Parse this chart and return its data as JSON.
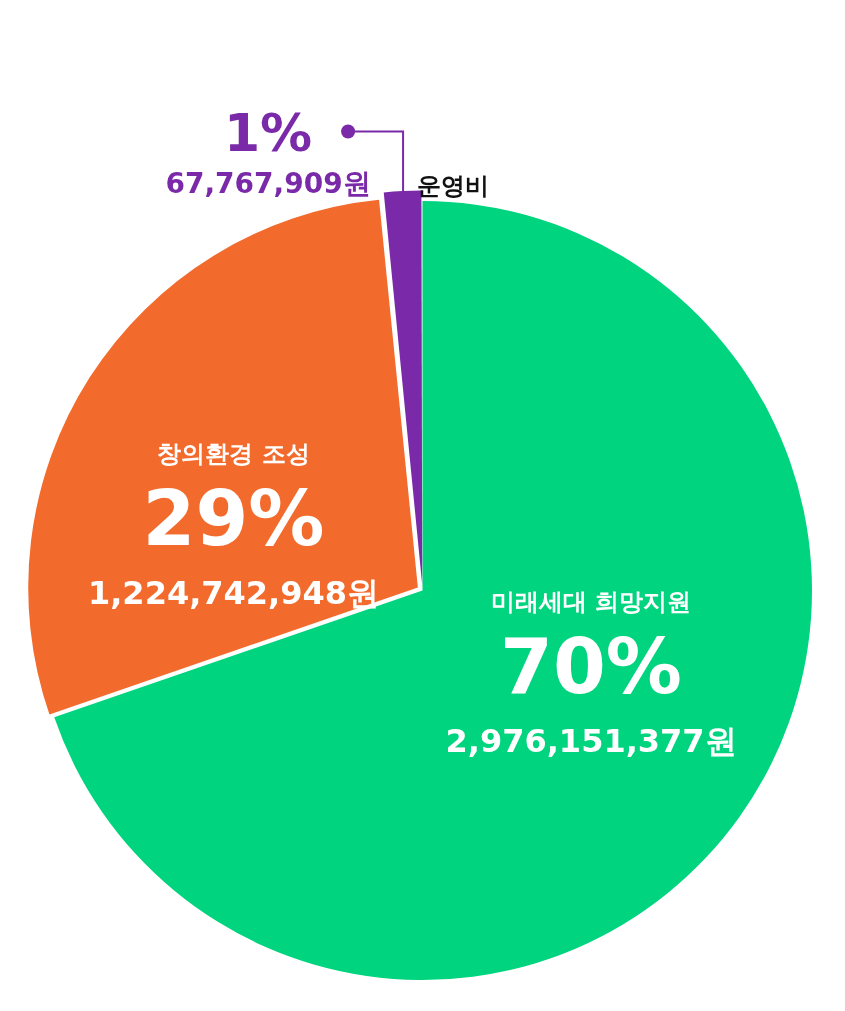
{
  "chart_data": {
    "type": "pie",
    "categories": [
      "미래세대 희망지원",
      "창의환경 조성",
      "운영비"
    ],
    "values": [
      2976151377,
      1224742948,
      67767909
    ],
    "colors": [
      "#00d47e",
      "#f26a2c",
      "#7a2aa8"
    ],
    "value_labels": [
      "2,976,151,377원",
      "1,224,742,948원",
      "67,767,909원"
    ],
    "annotations": [
      {
        "text": "70%",
        "x": "미래세대 희망지원"
      },
      {
        "text": "29%",
        "x": "창의환경 조성"
      },
      {
        "text": "1%",
        "x": "운영비"
      }
    ],
    "legend": false
  }
}
